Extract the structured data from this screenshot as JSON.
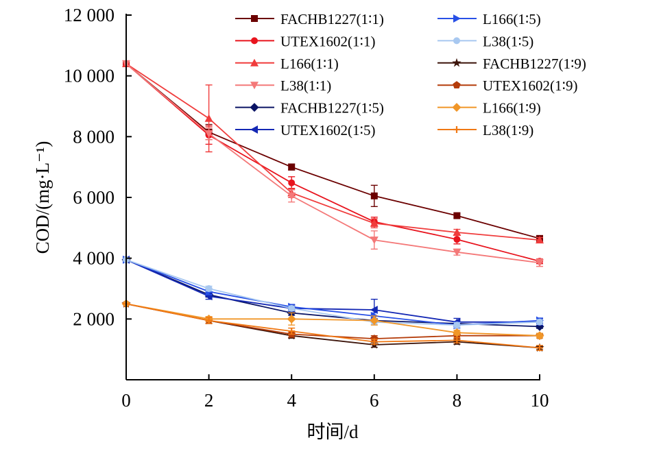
{
  "chart_data": {
    "type": "line",
    "title": "",
    "xlabel": "时间/d",
    "ylabel": "COD/(mg·L⁻¹)",
    "xlim": [
      0,
      10
    ],
    "ylim": [
      0,
      12000
    ],
    "x_ticks": [
      0,
      2,
      4,
      6,
      8,
      10
    ],
    "x_tick_labels": [
      "0",
      "2",
      "4",
      "6",
      "8",
      "10"
    ],
    "y_ticks": [
      2000,
      4000,
      6000,
      8000,
      10000,
      12000
    ],
    "y_tick_labels": [
      "2 000",
      "4 000",
      "6 000",
      "8 000",
      "10 000",
      "12 000"
    ],
    "grid": false,
    "legend_position": "top-right",
    "x": [
      0,
      2,
      4,
      6,
      8,
      10
    ],
    "series": [
      {
        "name": "FACHB1227(1∶1)",
        "color": "#6b0000",
        "marker": "square",
        "values": [
          10400,
          8150,
          7000,
          6050,
          5400,
          4650
        ],
        "errors": [
          0,
          250,
          100,
          350,
          80,
          60
        ]
      },
      {
        "name": "UTEX1602(1∶1)",
        "color": "#e8141e",
        "marker": "circle",
        "values": [
          10400,
          8050,
          6480,
          5200,
          4620,
          3900
        ],
        "errors": [
          0,
          300,
          200,
          150,
          150,
          80
        ]
      },
      {
        "name": "L166(1∶1)",
        "color": "#f03c3c",
        "marker": "triangle-up",
        "values": [
          10400,
          8600,
          6150,
          5150,
          4850,
          4600
        ],
        "errors": [
          0,
          1100,
          150,
          150,
          100,
          80
        ]
      },
      {
        "name": "L38(1∶1)",
        "color": "#f47878",
        "marker": "triangle-down",
        "values": [
          10400,
          8100,
          6050,
          4600,
          4200,
          3850
        ],
        "errors": [
          0,
          200,
          200,
          300,
          100,
          120
        ]
      },
      {
        "name": "FACHB1227(1∶5)",
        "color": "#0a1464",
        "marker": "diamond",
        "values": [
          3950,
          2800,
          2200,
          1950,
          1850,
          1750
        ],
        "errors": [
          0,
          80,
          80,
          60,
          60,
          60
        ]
      },
      {
        "name": "UTEX1602(1∶5)",
        "color": "#1428b4",
        "marker": "triangle-left",
        "values": [
          3950,
          2750,
          2350,
          2300,
          1900,
          1900
        ],
        "errors": [
          0,
          100,
          100,
          350,
          120,
          100
        ]
      },
      {
        "name": "L166(1∶5)",
        "color": "#2850e6",
        "marker": "triangle-right",
        "values": [
          3950,
          2900,
          2400,
          2100,
          1800,
          1950
        ],
        "errors": [
          0,
          100,
          80,
          100,
          100,
          80
        ]
      },
      {
        "name": "L38(1∶5)",
        "color": "#a8c8f0",
        "marker": "circle",
        "values": [
          3950,
          3000,
          2350,
          1900,
          1800,
          1900
        ],
        "errors": [
          0,
          80,
          80,
          80,
          80,
          80
        ]
      },
      {
        "name": "FACHB1227(1∶9)",
        "color": "#3c140a",
        "marker": "star",
        "values": [
          2500,
          1950,
          1450,
          1150,
          1250,
          1050
        ],
        "errors": [
          0,
          100,
          80,
          80,
          80,
          60
        ]
      },
      {
        "name": "UTEX1602(1∶9)",
        "color": "#b43c0a",
        "marker": "pentagon",
        "values": [
          2500,
          1950,
          1500,
          1350,
          1450,
          1450
        ],
        "errors": [
          0,
          100,
          100,
          100,
          80,
          80
        ]
      },
      {
        "name": "L166(1∶9)",
        "color": "#f09628",
        "marker": "diamond",
        "values": [
          2500,
          2000,
          2000,
          1950,
          1550,
          1450
        ],
        "errors": [
          0,
          80,
          200,
          150,
          80,
          80
        ]
      },
      {
        "name": "L38(1∶9)",
        "color": "#f07814",
        "marker": "plus",
        "values": [
          2500,
          1950,
          1600,
          1250,
          1300,
          1050
        ],
        "errors": [
          0,
          100,
          100,
          80,
          80,
          80
        ]
      }
    ]
  }
}
